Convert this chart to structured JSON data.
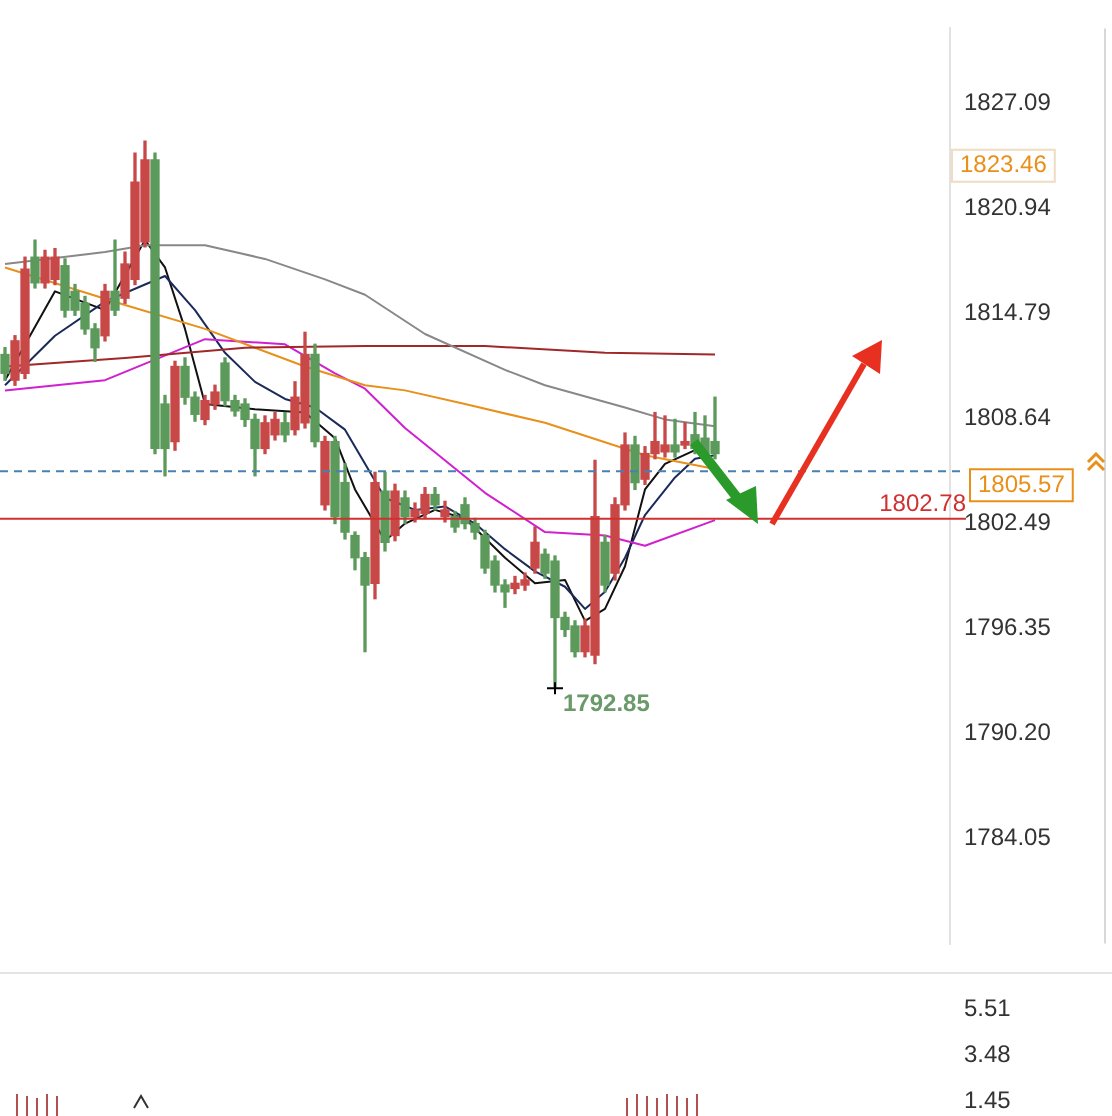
{
  "chart_data": [
    {
      "type": "candlestick",
      "categories": [
        null,
        null,
        null,
        null,
        null,
        null,
        null,
        null,
        null,
        null,
        null,
        null,
        null,
        null,
        null,
        null,
        null,
        null,
        null,
        null,
        null,
        null,
        null,
        null,
        null,
        null,
        null,
        null,
        null,
        null,
        null,
        null,
        null,
        null,
        null,
        null,
        null,
        null,
        null,
        null,
        null,
        null,
        null,
        null,
        null,
        null,
        null,
        null,
        null,
        null,
        null,
        null,
        null,
        null,
        null,
        null,
        null,
        null,
        null,
        null,
        null,
        null,
        null,
        null,
        null,
        null,
        null,
        null,
        null,
        null,
        null,
        null,
        null,
        null,
        null,
        null,
        null,
        null,
        null,
        null,
        null,
        null,
        null,
        null,
        null,
        null,
        null,
        null,
        null,
        null,
        null,
        null,
        null,
        null,
        null
      ],
      "ohlc": [
        [
          1812.4,
          1812.8,
          1810.9,
          1811.3
        ],
        [
          1810.9,
          1813.5,
          1810.6,
          1813.2
        ],
        [
          1811.3,
          1818.1,
          1811.0,
          1817.4
        ],
        [
          1818.1,
          1819.1,
          1816.3,
          1816.6
        ],
        [
          1816.6,
          1818.5,
          1816.3,
          1818.1
        ],
        [
          1816.8,
          1818.6,
          1816.5,
          1818.1
        ],
        [
          1817.6,
          1818.0,
          1814.6,
          1815.0
        ],
        [
          1816.1,
          1816.5,
          1814.7,
          1815.0
        ],
        [
          1815.4,
          1815.8,
          1813.6,
          1813.9
        ],
        [
          1813.9,
          1814.2,
          1812.0,
          1812.8
        ],
        [
          1813.5,
          1816.5,
          1813.2,
          1816.1
        ],
        [
          1816.1,
          1819.1,
          1814.7,
          1815.0
        ],
        [
          1815.7,
          1818.4,
          1815.4,
          1817.7
        ],
        [
          1816.8,
          1824.2,
          1816.5,
          1822.5
        ],
        [
          1819.0,
          1824.9,
          1818.7,
          1823.8
        ],
        [
          1823.8,
          1824.2,
          1806.6,
          1806.9
        ],
        [
          1809.5,
          1810.0,
          1805.3,
          1806.9
        ],
        [
          1807.3,
          1812.0,
          1806.8,
          1811.7
        ],
        [
          1811.7,
          1812.2,
          1809.5,
          1809.9
        ],
        [
          1809.9,
          1810.2,
          1808.5,
          1808.9
        ],
        [
          1808.6,
          1810.0,
          1808.3,
          1809.7
        ],
        [
          1809.5,
          1810.6,
          1809.2,
          1810.2
        ],
        [
          1811.9,
          1812.2,
          1809.4,
          1809.7
        ],
        [
          1809.7,
          1810.0,
          1808.8,
          1809.1
        ],
        [
          1809.5,
          1809.8,
          1808.2,
          1808.6
        ],
        [
          1808.6,
          1808.9,
          1805.3,
          1806.9
        ],
        [
          1806.9,
          1808.8,
          1806.6,
          1808.4
        ],
        [
          1807.7,
          1809.0,
          1807.4,
          1808.6
        ],
        [
          1808.4,
          1809.0,
          1807.3,
          1807.7
        ],
        [
          1808.0,
          1810.8,
          1807.7,
          1809.9
        ],
        [
          1808.4,
          1813.7,
          1808.1,
          1812.4
        ],
        [
          1812.4,
          1813.0,
          1807.0,
          1807.3
        ],
        [
          1803.6,
          1807.6,
          1803.3,
          1807.3
        ],
        [
          1807.3,
          1807.6,
          1802.5,
          1802.9
        ],
        [
          1804.9,
          1806.0,
          1801.6,
          1802.0
        ],
        [
          1801.8,
          1802.0,
          1799.8,
          1800.5
        ],
        [
          1800.5,
          1800.8,
          1795.0,
          1798.9
        ],
        [
          1799.0,
          1805.5,
          1798.1,
          1804.9
        ],
        [
          1804.4,
          1805.5,
          1800.9,
          1801.4
        ],
        [
          1801.8,
          1804.8,
          1801.5,
          1804.4
        ],
        [
          1804.0,
          1804.4,
          1802.5,
          1802.9
        ],
        [
          1802.9,
          1803.7,
          1802.6,
          1803.3
        ],
        [
          1803.1,
          1804.6,
          1802.8,
          1804.2
        ],
        [
          1804.2,
          1804.6,
          1803.3,
          1803.6
        ],
        [
          1802.9,
          1803.8,
          1802.6,
          1803.3
        ],
        [
          1802.9,
          1803.2,
          1802.0,
          1802.3
        ],
        [
          1803.6,
          1804.0,
          1802.2,
          1802.5
        ],
        [
          1802.5,
          1802.8,
          1801.6,
          1802.0
        ],
        [
          1801.8,
          1802.1,
          1799.6,
          1799.9
        ],
        [
          1800.3,
          1800.6,
          1798.5,
          1798.9
        ],
        [
          1798.9,
          1799.2,
          1797.6,
          1798.5
        ],
        [
          1798.7,
          1799.4,
          1798.4,
          1799.0
        ],
        [
          1798.9,
          1799.6,
          1798.6,
          1799.2
        ],
        [
          1799.9,
          1802.3,
          1799.6,
          1801.4
        ],
        [
          1800.7,
          1801.0,
          1799.3,
          1799.6
        ],
        [
          1800.3,
          1800.6,
          1792.85,
          1797.0
        ],
        [
          1797.0,
          1797.3,
          1795.9,
          1796.3
        ],
        [
          1796.5,
          1796.8,
          1794.7,
          1795.0
        ],
        [
          1795.0,
          1796.9,
          1794.7,
          1796.5
        ],
        [
          1794.8,
          1806.2,
          1794.3,
          1802.9
        ],
        [
          1801.4,
          1801.8,
          1798.5,
          1798.9
        ],
        [
          1799.6,
          1804.0,
          1799.2,
          1803.6
        ],
        [
          1803.6,
          1807.8,
          1803.3,
          1807.1
        ],
        [
          1807.1,
          1807.6,
          1804.5,
          1804.9
        ],
        [
          1805.1,
          1807.0,
          1804.8,
          1806.6
        ],
        [
          1806.6,
          1809.0,
          1806.3,
          1807.3
        ],
        [
          1806.7,
          1808.8,
          1806.4,
          1807.1
        ],
        [
          1807.1,
          1808.6,
          1806.4,
          1806.7
        ],
        [
          1807.1,
          1808.4,
          1806.9,
          1807.3
        ],
        [
          1807.7,
          1809.0,
          1806.6,
          1806.9
        ],
        [
          1807.5,
          1808.8,
          1806.3,
          1806.6
        ],
        [
          1807.3,
          1809.9,
          1806.3,
          1806.6
        ],
        null,
        null,
        null,
        null,
        null,
        null,
        null,
        null,
        null,
        null,
        null,
        null,
        null,
        null,
        null,
        null,
        null,
        null,
        null,
        null,
        null,
        null,
        null
      ],
      "series": [
        {
          "type": "line",
          "color": "#888888",
          "values": [
            1817.7,
            null,
            null,
            null,
            null,
            null,
            null,
            null,
            null,
            null,
            1818.4,
            null,
            null,
            null,
            1818.8,
            null,
            null,
            null,
            null,
            null,
            1818.8,
            null,
            null,
            null,
            null,
            null,
            1818.0,
            null,
            null,
            null,
            null,
            null,
            1816.8,
            null,
            null,
            null,
            1815.9,
            null,
            null,
            null,
            null,
            null,
            1813.6,
            null,
            null,
            null,
            null,
            null,
            null,
            null,
            1811.5,
            null,
            null,
            null,
            1810.6,
            null,
            null,
            null,
            null,
            null,
            null,
            null,
            1809.3,
            null,
            null,
            null,
            1808.6,
            null,
            null,
            null,
            null,
            1808.2,
            null,
            null,
            null,
            null,
            null,
            null,
            null,
            null,
            null,
            null,
            null,
            null,
            null,
            null,
            null,
            null,
            null,
            null,
            null,
            null,
            null,
            null,
            null
          ]
        },
        {
          "type": "line",
          "color": "#a02828",
          "values": [
            1811.7,
            null,
            null,
            null,
            null,
            null,
            null,
            null,
            null,
            null,
            null,
            null,
            1812.2,
            null,
            null,
            null,
            null,
            null,
            null,
            null,
            null,
            null,
            null,
            null,
            1812.8,
            null,
            null,
            null,
            null,
            null,
            null,
            null,
            null,
            null,
            null,
            null,
            1812.9,
            null,
            null,
            null,
            null,
            null,
            null,
            null,
            null,
            null,
            null,
            null,
            1812.9,
            null,
            null,
            null,
            null,
            null,
            null,
            null,
            null,
            null,
            null,
            null,
            1812.5,
            null,
            null,
            null,
            null,
            null,
            null,
            null,
            null,
            null,
            null,
            1812.4,
            null,
            null,
            null,
            null,
            null,
            null,
            null,
            null,
            null,
            null,
            null,
            null,
            null,
            null,
            null,
            null,
            null,
            null,
            null,
            null,
            null,
            null,
            null
          ]
        },
        {
          "type": "line",
          "color": "#e8901a",
          "values": [
            1817.5,
            null,
            null,
            null,
            null,
            null,
            null,
            null,
            null,
            null,
            null,
            null,
            1815.3,
            null,
            null,
            null,
            null,
            null,
            null,
            null,
            1813.9,
            null,
            null,
            null,
            null,
            null,
            null,
            null,
            null,
            null,
            1811.7,
            null,
            null,
            null,
            null,
            null,
            1810.6,
            null,
            null,
            null,
            1810.3,
            null,
            null,
            null,
            null,
            null,
            1809.5,
            null,
            null,
            null,
            null,
            null,
            null,
            null,
            1808.4,
            null,
            null,
            null,
            null,
            null,
            null,
            null,
            null,
            null,
            1806.5,
            null,
            null,
            null,
            null,
            null,
            null,
            1805.7,
            null,
            null,
            null,
            null,
            null,
            null,
            null,
            null,
            null,
            null,
            null,
            null,
            null,
            null,
            null,
            null,
            null,
            null,
            null,
            null,
            null,
            null,
            null
          ]
        },
        {
          "type": "line",
          "color": "#d020d0",
          "values": [
            1810.3,
            null,
            null,
            null,
            null,
            null,
            null,
            null,
            null,
            null,
            1810.9,
            null,
            null,
            null,
            null,
            null,
            null,
            null,
            null,
            null,
            1813.3,
            null,
            null,
            null,
            null,
            null,
            null,
            null,
            1813.0,
            null,
            null,
            null,
            null,
            1811.3,
            null,
            null,
            1810.4,
            null,
            null,
            null,
            1808.1,
            null,
            null,
            null,
            null,
            null,
            null,
            null,
            1804.3,
            null,
            null,
            null,
            null,
            null,
            1802.0,
            null,
            null,
            null,
            null,
            null,
            1801.8,
            null,
            null,
            null,
            1801.2,
            null,
            null,
            null,
            null,
            null,
            null,
            1802.7,
            null,
            null,
            null,
            null,
            null,
            null,
            null,
            null,
            null,
            null,
            null,
            null,
            null,
            null,
            null,
            null,
            null,
            null,
            null,
            null,
            null,
            null,
            null
          ]
        },
        {
          "type": "line",
          "color": "#1a2a5a",
          "values": [
            1810.6,
            null,
            null,
            null,
            null,
            1813.5,
            null,
            null,
            null,
            null,
            1815.5,
            null,
            null,
            null,
            1816.5,
            null,
            1817.0,
            null,
            null,
            1815.0,
            null,
            null,
            1812.5,
            null,
            null,
            1810.8,
            null,
            null,
            1809.8,
            null,
            null,
            1809.3,
            null,
            null,
            1808.0,
            null,
            1806.0,
            null,
            1804.0,
            null,
            null,
            1803.3,
            null,
            null,
            1803.5,
            null,
            null,
            1802.5,
            null,
            null,
            1801.0,
            null,
            null,
            1799.7,
            null,
            null,
            1798.8,
            null,
            1797.5,
            null,
            1798.5,
            null,
            1800.5,
            null,
            1803.0,
            null,
            null,
            1805.2,
            null,
            1806.3,
            null,
            1806.5,
            null,
            null,
            null,
            null,
            null,
            null,
            null,
            null,
            null,
            null,
            null,
            null,
            null,
            null,
            null,
            null,
            null,
            null,
            null,
            null,
            null,
            null,
            null
          ]
        },
        {
          "type": "line",
          "color": "#111111",
          "values": [
            1810.9,
            null,
            null,
            null,
            null,
            1816.1,
            null,
            null,
            null,
            null,
            1815.0,
            null,
            null,
            null,
            1819.1,
            null,
            1817.5,
            null,
            1813.9,
            null,
            1809.5,
            null,
            null,
            null,
            null,
            1809.2,
            null,
            null,
            null,
            null,
            1809.0,
            null,
            null,
            1807.5,
            null,
            1804.5,
            null,
            null,
            1801.5,
            null,
            1802.5,
            null,
            null,
            1803.3,
            null,
            null,
            1802.8,
            null,
            null,
            null,
            1800.5,
            null,
            null,
            1799.0,
            null,
            null,
            1799.2,
            null,
            1796.8,
            null,
            1797.5,
            null,
            1800.0,
            null,
            1804.5,
            null,
            1806.0,
            null,
            null,
            1806.8,
            null,
            null,
            null,
            null,
            null,
            null,
            null,
            null,
            null,
            null,
            null,
            null,
            null,
            null,
            null,
            null,
            null,
            null,
            null,
            null,
            null,
            null,
            null,
            null,
            null
          ]
        }
      ],
      "ylim": [
        1777.9,
        1831.5
      ],
      "yticks": [
        1784.05,
        {
          "value": 1790.2,
          "label": "1790.20"
        },
        1796.35,
        1802.49,
        1808.64,
        1814.79,
        1820.94,
        1827.09
      ],
      "tick_labels": "y",
      "marker": "none",
      "ref_lines": [
        {
          "axis": "y",
          "value": 1802.78,
          "label": "1802.78",
          "color": "#d03030",
          "line_style": "solid"
        },
        {
          "axis": "y",
          "value": 1805.57,
          "label": "1805.57",
          "color": "#4a80b0",
          "line_style": "dashed"
        }
      ],
      "annotations": [
        "1792.85",
        "1823.46"
      ]
    },
    {
      "type": "other",
      "annotations": [
        "5.51",
        "3.48",
        "1.45"
      ]
    }
  ]
}
